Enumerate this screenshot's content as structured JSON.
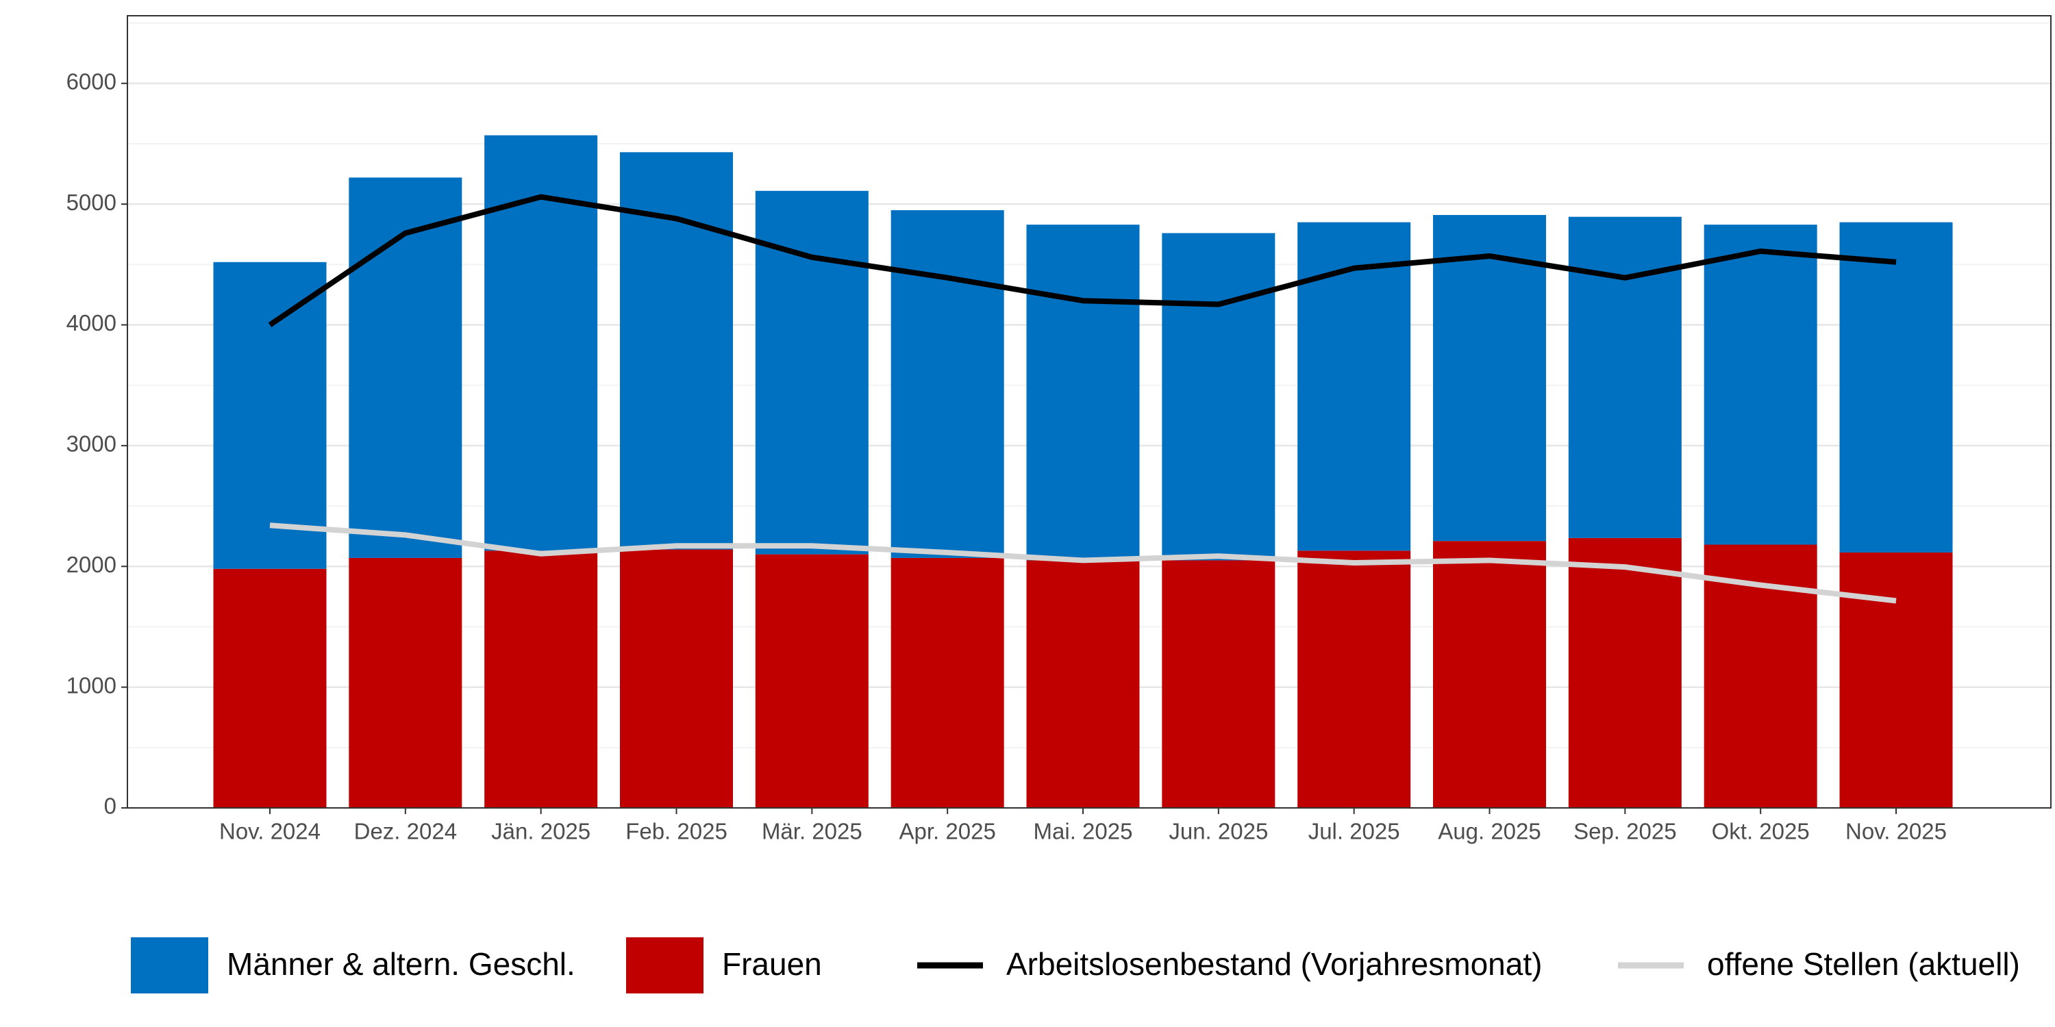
{
  "chart_data": {
    "type": "bar",
    "categories": [
      "Nov. 2024",
      "Dez. 2024",
      "Jän. 2025",
      "Feb. 2025",
      "Mär. 2025",
      "Apr. 2025",
      "Mai. 2025",
      "Jun. 2025",
      "Jul. 2025",
      "Aug. 2025",
      "Sep. 2025",
      "Okt. 2025",
      "Nov. 2025"
    ],
    "series": [
      {
        "name": "Männer & altern. Geschl.",
        "type": "bar",
        "color": "#0070c0",
        "values": [
          2540,
          3150,
          3440,
          3290,
          3010,
          2880,
          2780,
          2710,
          2720,
          2700,
          2660,
          2650,
          2735
        ]
      },
      {
        "name": "Frauen",
        "type": "bar",
        "color": "#c00000",
        "values": [
          1980,
          2070,
          2130,
          2140,
          2100,
          2070,
          2050,
          2050,
          2130,
          2210,
          2235,
          2180,
          2115
        ]
      },
      {
        "name": "Arbeitslosenbestand (Vorjahresmonat)",
        "type": "line",
        "color": "#000000",
        "values": [
          4000,
          4760,
          5060,
          4880,
          4560,
          4390,
          4200,
          4170,
          4470,
          4570,
          4390,
          4610,
          4520
        ]
      },
      {
        "name": "offene Stellen (aktuell)",
        "type": "line",
        "color": "#d3d3d3",
        "values": [
          2340,
          2260,
          2105,
          2170,
          2170,
          2115,
          2050,
          2085,
          2030,
          2050,
          1995,
          1845,
          1715
        ]
      }
    ],
    "stacked": true,
    "ylim": [
      0,
      6560
    ],
    "yticks": [
      0,
      1000,
      2000,
      3000,
      4000,
      5000,
      6000
    ],
    "y_minor_ticks": [
      500,
      1500,
      2500,
      3500,
      4500,
      5500,
      6500
    ],
    "grid": true,
    "legend_position": "bottom"
  }
}
